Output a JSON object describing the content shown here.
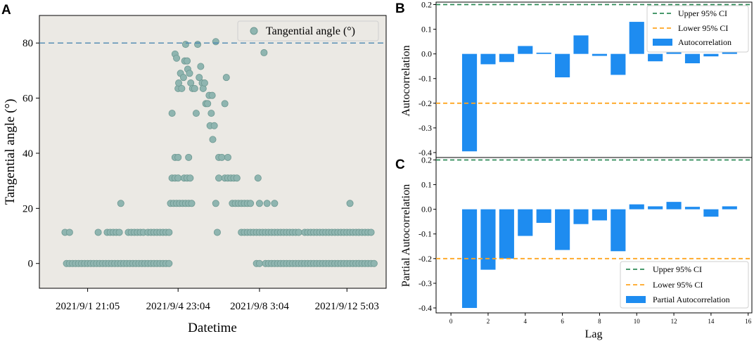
{
  "colors": {
    "scatter_bg": "#ebe9e4",
    "point_fill": "#8fb5b0",
    "point_stroke": "#6d9891",
    "threshold_line": "#4a86b0",
    "bar": "#1e8cf0",
    "ci_upper": "#2e8b57",
    "ci_lower": "#ffa520"
  },
  "chart_data": [
    {
      "panel_label": "A",
      "type": "scatter",
      "title": "",
      "xlabel": "Datetime",
      "ylabel": "Tangential angle (°)",
      "legend": "Tangential angle (°)",
      "legend_position": "top-right",
      "ylim": [
        -9,
        90
      ],
      "xlim": [
        0,
        115
      ],
      "yticks": [
        0,
        20,
        40,
        60,
        80
      ],
      "xticks": [
        {
          "x": 16,
          "label": "2021/9/1 21:05"
        },
        {
          "x": 46,
          "label": "2021/9/4 23:04"
        },
        {
          "x": 73,
          "label": "2021/9/8 3:04"
        },
        {
          "x": 102,
          "label": "2021/9/12 5:03"
        }
      ],
      "threshold": 80,
      "points": [
        [
          8.5,
          11.3
        ],
        [
          10,
          11.3
        ],
        [
          19.5,
          11.3
        ],
        [
          22.5,
          11.3
        ],
        [
          23.5,
          11.3
        ],
        [
          24.5,
          11.3
        ],
        [
          25.5,
          11.3
        ],
        [
          26.5,
          11.3
        ],
        [
          29.5,
          11.3
        ],
        [
          30.5,
          11.3
        ],
        [
          31.5,
          11.3
        ],
        [
          32.5,
          11.3
        ],
        [
          33.5,
          11.3
        ],
        [
          34.5,
          11.3
        ],
        [
          36,
          11.3
        ],
        [
          37,
          11.3
        ],
        [
          38,
          11.3
        ],
        [
          39,
          11.3
        ],
        [
          40,
          11.3
        ],
        [
          41,
          11.3
        ],
        [
          42,
          11.3
        ],
        [
          43,
          11.3
        ],
        [
          27,
          21.8
        ],
        [
          9,
          0
        ],
        [
          10,
          0
        ],
        [
          11,
          0
        ],
        [
          12,
          0
        ],
        [
          13,
          0
        ],
        [
          14,
          0
        ],
        [
          15,
          0
        ],
        [
          16,
          0
        ],
        [
          17,
          0
        ],
        [
          18,
          0
        ],
        [
          19,
          0
        ],
        [
          20,
          0
        ],
        [
          21,
          0
        ],
        [
          22,
          0
        ],
        [
          23,
          0
        ],
        [
          24,
          0
        ],
        [
          25,
          0
        ],
        [
          26,
          0
        ],
        [
          27,
          0
        ],
        [
          28,
          0
        ],
        [
          29,
          0
        ],
        [
          30,
          0
        ],
        [
          31,
          0
        ],
        [
          32,
          0
        ],
        [
          33,
          0
        ],
        [
          34,
          0
        ],
        [
          35,
          0
        ],
        [
          36,
          0
        ],
        [
          37,
          0
        ],
        [
          38,
          0
        ],
        [
          39,
          0
        ],
        [
          40,
          0
        ],
        [
          41,
          0
        ],
        [
          42,
          0
        ],
        [
          43,
          0
        ],
        [
          43.5,
          21.8
        ],
        [
          44.5,
          21.8
        ],
        [
          45.5,
          21.8
        ],
        [
          46.5,
          21.8
        ],
        [
          47.5,
          21.8
        ],
        [
          48.5,
          21.8
        ],
        [
          49.5,
          21.8
        ],
        [
          50.5,
          21.8
        ],
        [
          44,
          31
        ],
        [
          45,
          31
        ],
        [
          46,
          31
        ],
        [
          48,
          31
        ],
        [
          49,
          31
        ],
        [
          50,
          31
        ],
        [
          45,
          38.5
        ],
        [
          46,
          38.5
        ],
        [
          49.5,
          38.5
        ],
        [
          44,
          54.5
        ],
        [
          45,
          76
        ],
        [
          45.5,
          74.5
        ],
        [
          46,
          63.5
        ],
        [
          46.2,
          65.5
        ],
        [
          46.8,
          69
        ],
        [
          47.2,
          63.5
        ],
        [
          47.8,
          67.5
        ],
        [
          48.2,
          73.5
        ],
        [
          48.5,
          79.5
        ],
        [
          49,
          73.5
        ],
        [
          49.2,
          70.5
        ],
        [
          49.8,
          69
        ],
        [
          50.2,
          65.5
        ],
        [
          50.8,
          63.5
        ],
        [
          51.5,
          63.5
        ],
        [
          52,
          54.5
        ],
        [
          52.5,
          79.5
        ],
        [
          53,
          67.5
        ],
        [
          53.5,
          71.5
        ],
        [
          54,
          65.5
        ],
        [
          54.3,
          63.5
        ],
        [
          54.8,
          65.5
        ],
        [
          55.2,
          58
        ],
        [
          55.8,
          58
        ],
        [
          56.3,
          61
        ],
        [
          56.6,
          50
        ],
        [
          57,
          54.5
        ],
        [
          57.3,
          61
        ],
        [
          57.5,
          45
        ],
        [
          58,
          50
        ],
        [
          58.5,
          80.5
        ],
        [
          59,
          11.3
        ],
        [
          58.5,
          21.8
        ],
        [
          59.5,
          31
        ],
        [
          59.5,
          38.5
        ],
        [
          60.5,
          38.5
        ],
        [
          61.5,
          58
        ],
        [
          62,
          67.5
        ],
        [
          62.5,
          38.5
        ],
        [
          61.5,
          31
        ],
        [
          62.5,
          31
        ],
        [
          63.5,
          31
        ],
        [
          64.5,
          31
        ],
        [
          65.5,
          31
        ],
        [
          64,
          21.8
        ],
        [
          65,
          21.8
        ],
        [
          66,
          21.8
        ],
        [
          67,
          21.8
        ],
        [
          68,
          21.8
        ],
        [
          69,
          21.8
        ],
        [
          70,
          21.8
        ],
        [
          73,
          21.8
        ],
        [
          75.5,
          21.8
        ],
        [
          78,
          21.8
        ],
        [
          72.5,
          31
        ],
        [
          74.5,
          76.5
        ],
        [
          67,
          11.3
        ],
        [
          68,
          11.3
        ],
        [
          69,
          11.3
        ],
        [
          70,
          11.3
        ],
        [
          71,
          11.3
        ],
        [
          72,
          11.3
        ],
        [
          73,
          11.3
        ],
        [
          74,
          11.3
        ],
        [
          75,
          11.3
        ],
        [
          76,
          11.3
        ],
        [
          77,
          11.3
        ],
        [
          78,
          11.3
        ],
        [
          79,
          11.3
        ],
        [
          80,
          11.3
        ],
        [
          81,
          11.3
        ],
        [
          82,
          11.3
        ],
        [
          83,
          11.3
        ],
        [
          84,
          11.3
        ],
        [
          85,
          11.3
        ],
        [
          86,
          11.3
        ],
        [
          88,
          11.3
        ],
        [
          89,
          11.3
        ],
        [
          90,
          11.3
        ],
        [
          91,
          11.3
        ],
        [
          92,
          11.3
        ],
        [
          93,
          11.3
        ],
        [
          94,
          11.3
        ],
        [
          95,
          11.3
        ],
        [
          96,
          11.3
        ],
        [
          97,
          11.3
        ],
        [
          98,
          11.3
        ],
        [
          99,
          11.3
        ],
        [
          100,
          11.3
        ],
        [
          101,
          11.3
        ],
        [
          102,
          11.3
        ],
        [
          103,
          11.3
        ],
        [
          104,
          11.3
        ],
        [
          105,
          11.3
        ],
        [
          106,
          11.3
        ],
        [
          107,
          11.3
        ],
        [
          108,
          11.3
        ],
        [
          109,
          11.3
        ],
        [
          110,
          11.3
        ],
        [
          103,
          21.8
        ],
        [
          72,
          0
        ],
        [
          73,
          0
        ],
        [
          75,
          0
        ],
        [
          76,
          0
        ],
        [
          77,
          0
        ],
        [
          78,
          0
        ],
        [
          79,
          0
        ],
        [
          80,
          0
        ],
        [
          81,
          0
        ],
        [
          82,
          0
        ],
        [
          83,
          0
        ],
        [
          84,
          0
        ],
        [
          85,
          0
        ],
        [
          86,
          0
        ],
        [
          87,
          0
        ],
        [
          88,
          0
        ],
        [
          89,
          0
        ],
        [
          90,
          0
        ],
        [
          91,
          0
        ],
        [
          92,
          0
        ],
        [
          93,
          0
        ],
        [
          94,
          0
        ],
        [
          95,
          0
        ],
        [
          96,
          0
        ],
        [
          97,
          0
        ],
        [
          98,
          0
        ],
        [
          99,
          0
        ],
        [
          100,
          0
        ],
        [
          101,
          0
        ],
        [
          102,
          0
        ],
        [
          103,
          0
        ],
        [
          104,
          0
        ],
        [
          105,
          0
        ],
        [
          106,
          0
        ],
        [
          107,
          0
        ],
        [
          108,
          0
        ],
        [
          109,
          0
        ],
        [
          110,
          0
        ],
        [
          111,
          0
        ]
      ]
    },
    {
      "panel_label": "B",
      "type": "bar",
      "ylabel": "Autocorrelation",
      "xlabel": "",
      "ylim": [
        -0.42,
        0.21
      ],
      "xlim": [
        -0.8,
        16.2
      ],
      "yticks": [
        "0.2",
        "0.1",
        "0.0",
        "-0.1",
        "-0.2",
        "-0.3",
        "-0.4"
      ],
      "lags": [
        1,
        2,
        3,
        4,
        5,
        6,
        7,
        8,
        9,
        10,
        11,
        12,
        13,
        14,
        15
      ],
      "values": [
        -0.395,
        -0.042,
        -0.033,
        0.032,
        0.005,
        -0.095,
        0.075,
        -0.008,
        -0.085,
        0.13,
        -0.03,
        0.012,
        -0.038,
        -0.01,
        0.02
      ],
      "ci_upper": 0.2,
      "ci_lower": -0.2,
      "legend": [
        "Upper 95% CI",
        "Lower 95% CI",
        "Autocorrelation"
      ],
      "legend_position": "top-right"
    },
    {
      "panel_label": "C",
      "type": "bar",
      "ylabel": "Partial Autocorrelation",
      "xlabel": "Lag",
      "ylim": [
        -0.42,
        0.21
      ],
      "xlim": [
        -0.8,
        16.2
      ],
      "yticks": [
        "0.2",
        "0.1",
        "0.0",
        "-0.1",
        "-0.2",
        "-0.3",
        "-0.4"
      ],
      "xticks": [
        "0",
        "2",
        "4",
        "6",
        "8",
        "10",
        "12",
        "14",
        "16"
      ],
      "lags": [
        1,
        2,
        3,
        4,
        5,
        6,
        7,
        8,
        9,
        10,
        11,
        12,
        13,
        14,
        15
      ],
      "values": [
        -0.4,
        -0.245,
        -0.2,
        -0.108,
        -0.055,
        -0.165,
        -0.06,
        -0.045,
        -0.17,
        0.02,
        0.012,
        0.03,
        0.01,
        -0.03,
        0.012
      ],
      "ci_upper": 0.2,
      "ci_lower": -0.2,
      "legend": [
        "Upper 95% CI",
        "Lower 95% CI",
        "Partial Autocorrelation"
      ],
      "legend_position": "bottom-right"
    }
  ]
}
